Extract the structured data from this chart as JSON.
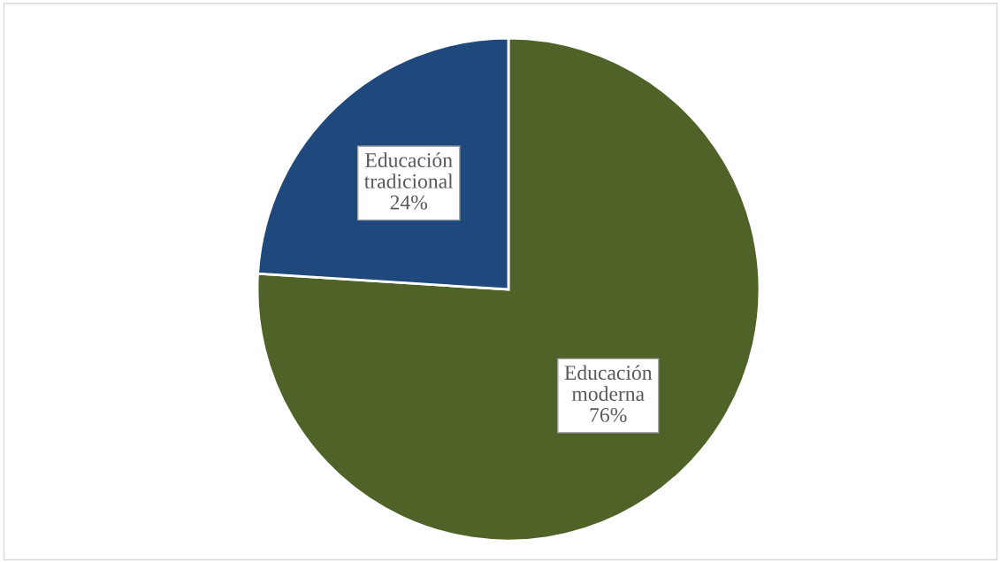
{
  "chart_data": {
    "type": "pie",
    "categories": [
      "Educación moderna",
      "Educación tradicional"
    ],
    "values": [
      76,
      24
    ],
    "value_labels": [
      "76%",
      "24%"
    ],
    "colors": [
      "#4f6228",
      "#1f497d"
    ],
    "legend": false
  }
}
